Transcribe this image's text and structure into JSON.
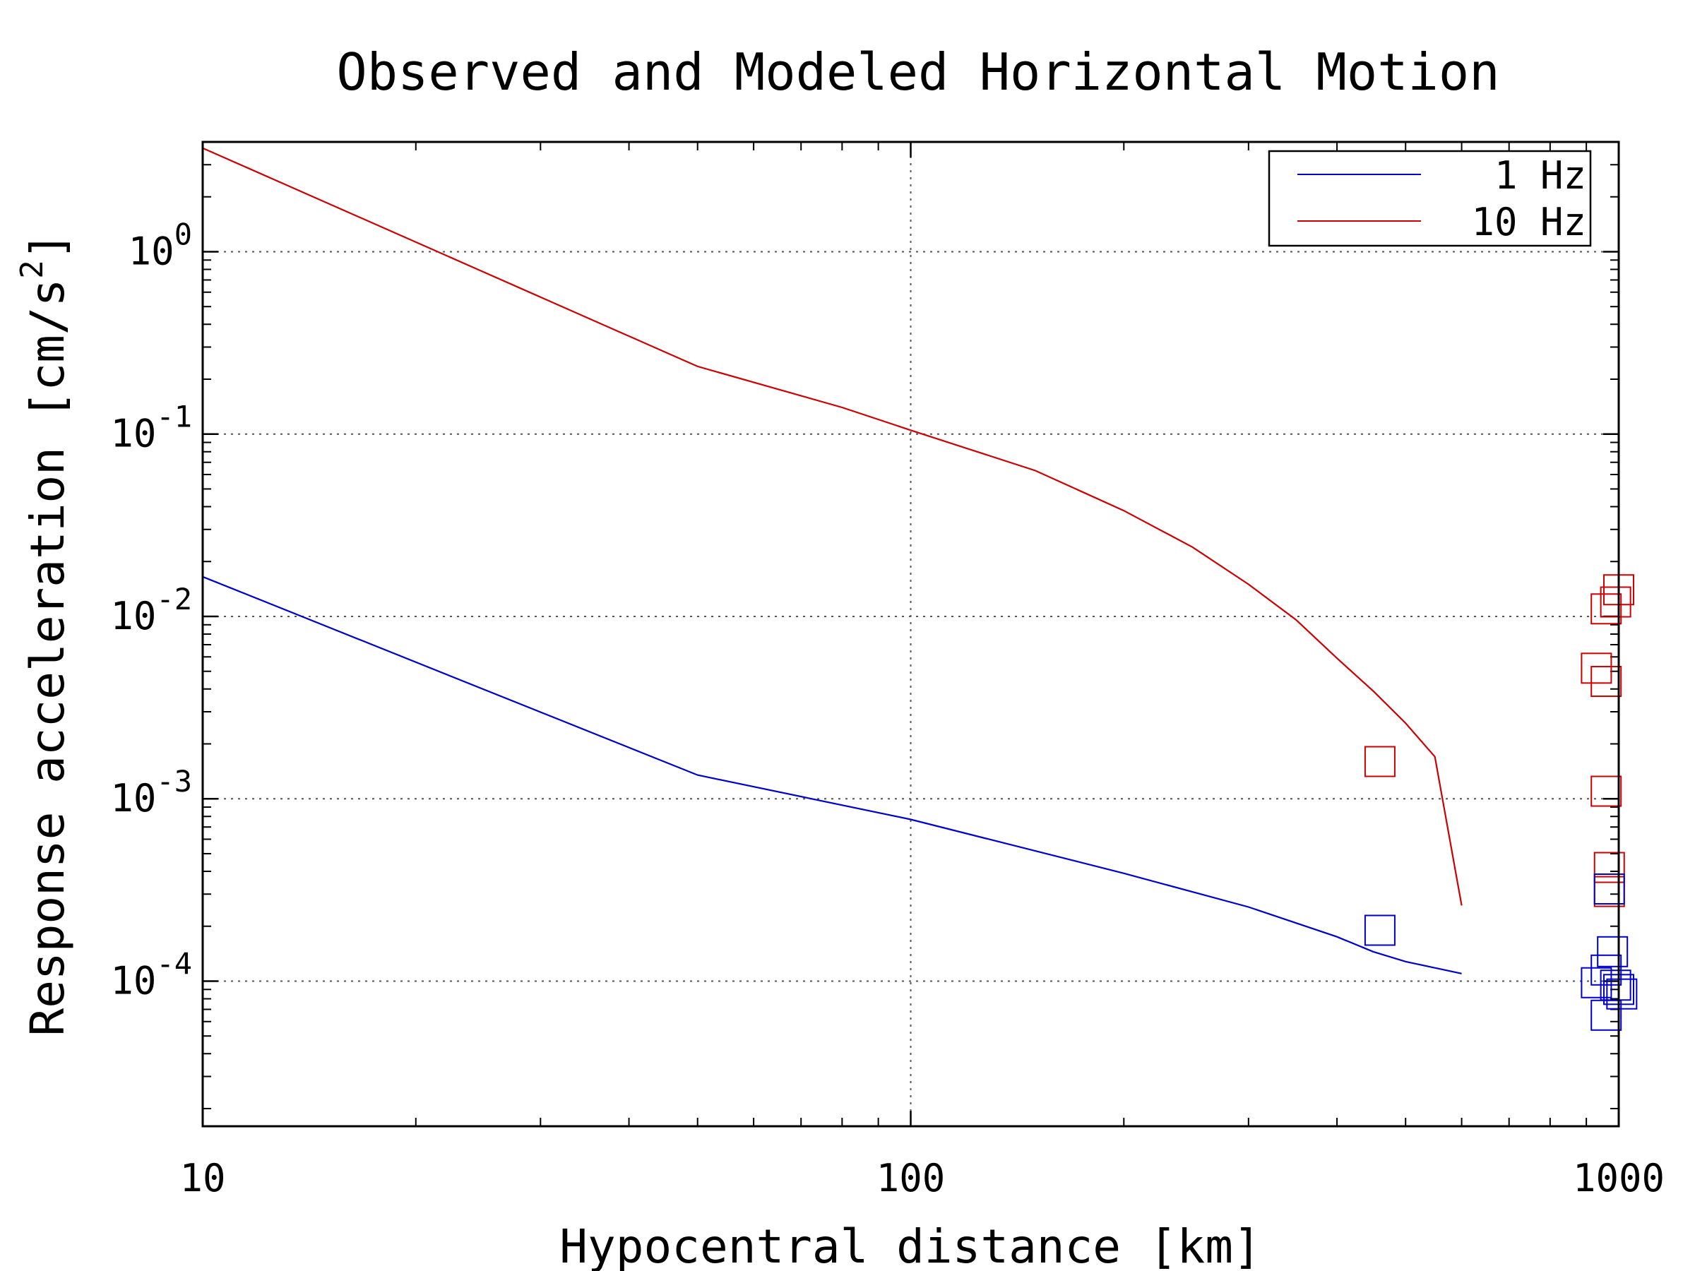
{
  "chart_data": {
    "type": "line",
    "title": "Observed and Modeled Horizontal Motion",
    "xlabel": "Hypocentral distance [km]",
    "ylabel": "Response acceleration [cm/s",
    "ylabel_sup": "2",
    "ylabel_suffix": "]",
    "xscale": "log",
    "yscale": "log",
    "xlim": [
      10,
      1000
    ],
    "ylim": [
      1.6e-05,
      4
    ],
    "xticks": [
      {
        "value": 10,
        "label": "10"
      },
      {
        "value": 100,
        "label": "100"
      },
      {
        "value": 1000,
        "label": "1000"
      }
    ],
    "yticks": [
      {
        "value": 1,
        "base": "10",
        "exp": "0"
      },
      {
        "value": 0.1,
        "base": "10",
        "exp": "-1"
      },
      {
        "value": 0.01,
        "base": "10",
        "exp": "-2"
      },
      {
        "value": 0.001,
        "base": "10",
        "exp": "-3"
      },
      {
        "value": 0.0001,
        "base": "10",
        "exp": "-4"
      }
    ],
    "grid": true,
    "legend_position": "top-right",
    "series": [
      {
        "name": "1 Hz",
        "color": "#0000cc",
        "kind": "model-line",
        "x": [
          10,
          50,
          100,
          200,
          300,
          400,
          450,
          500,
          600
        ],
        "y": [
          0.0165,
          0.00135,
          0.00077,
          0.00039,
          0.000255,
          0.000175,
          0.000145,
          0.000128,
          0.00011
        ]
      },
      {
        "name": "10 Hz",
        "color": "#cc0000",
        "kind": "model-line",
        "x": [
          10,
          50,
          80,
          100,
          150,
          200,
          250,
          300,
          350,
          400,
          450,
          500,
          550,
          600
        ],
        "y": [
          3.7,
          0.235,
          0.14,
          0.105,
          0.063,
          0.038,
          0.024,
          0.015,
          0.0096,
          0.0059,
          0.0039,
          0.0026,
          0.0017,
          0.00026
        ]
      },
      {
        "name": "",
        "color": "#cc0000",
        "kind": "observed-squares",
        "x": [
          460,
          960,
          970,
          960,
          930,
          960,
          990,
          1000,
          970
        ],
        "y": [
          0.0016,
          0.0011,
          0.00042,
          0.0044,
          0.0052,
          0.011,
          0.012,
          0.014,
          0.00031
        ]
      },
      {
        "name": "",
        "color": "#0000cc",
        "kind": "observed-squares",
        "x": [
          460,
          970,
          930,
          960,
          980,
          1000,
          1010,
          960,
          990
        ],
        "y": [
          0.00019,
          0.00032,
          9.8e-05,
          0.000115,
          0.000145,
          9e-05,
          8.5e-05,
          6.5e-05,
          9.5e-05
        ]
      }
    ]
  }
}
